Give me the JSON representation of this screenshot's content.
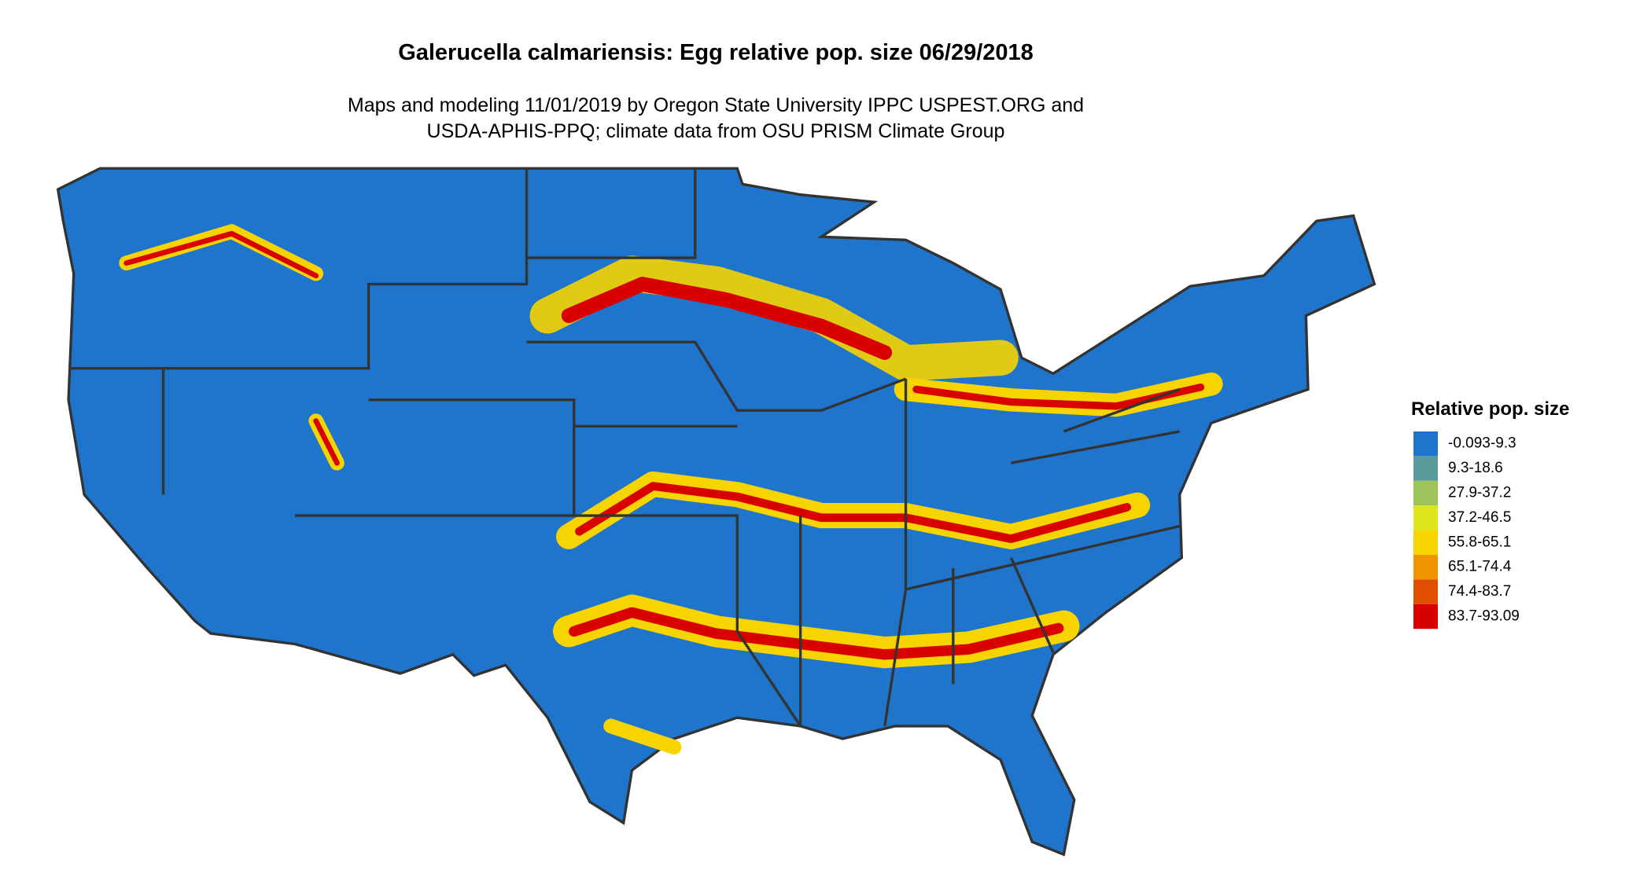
{
  "title": "Galerucella calmariensis: Egg relative pop. size 06/29/2018",
  "subtitle": [
    "Maps and modeling 11/01/2019 by Oregon State University IPPC USPEST.ORG and",
    "USDA-APHIS-PPQ; climate data from OSU PRISM Climate Group"
  ],
  "legend": {
    "title": "Relative pop. size",
    "items": [
      {
        "label": "-0.093-9.3",
        "color": "#1f74cc"
      },
      {
        "label": "9.3-18.6",
        "color": "#5b9a9a"
      },
      {
        "label": "27.9-37.2",
        "color": "#9cc45a"
      },
      {
        "label": "37.2-46.5",
        "color": "#dde61c"
      },
      {
        "label": "55.8-65.1",
        "color": "#f5d400"
      },
      {
        "label": "65.1-74.4",
        "color": "#ee9500"
      },
      {
        "label": "74.4-83.7",
        "color": "#e04e00"
      },
      {
        "label": "83.7-93.09",
        "color": "#d90000"
      }
    ]
  }
}
